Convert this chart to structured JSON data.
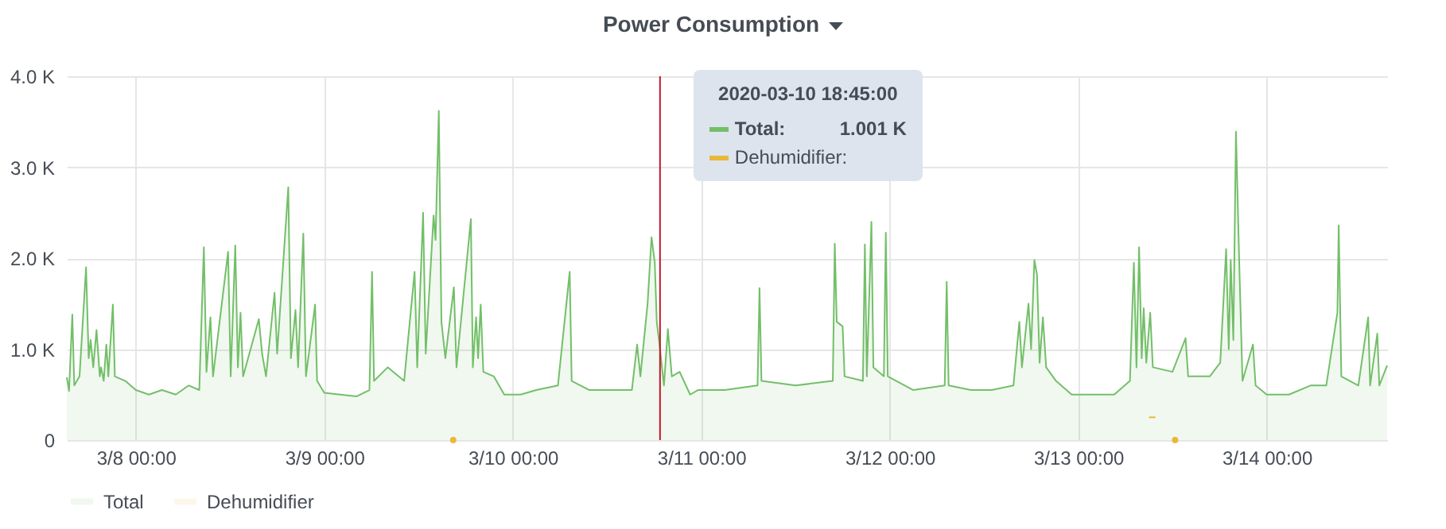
{
  "chart_data": {
    "type": "area",
    "title": "Power Consumption",
    "x": [
      "2020-03-07T15:13",
      "2020-03-07T15:30",
      "2020-03-07T15:55",
      "2020-03-07T16:10",
      "2020-03-07T16:50",
      "2020-03-07T17:40",
      "2020-03-07T18:00",
      "2020-03-07T18:15",
      "2020-03-07T18:35",
      "2020-03-07T19:00",
      "2020-03-07T19:25",
      "2020-03-07T19:35",
      "2020-03-07T19:55",
      "2020-03-07T20:15",
      "2020-03-07T20:30",
      "2020-03-07T21:05",
      "2020-03-07T21:20",
      "2020-03-07T22:40",
      "2020-03-08T00:00",
      "2020-03-08T01:40",
      "2020-03-08T03:20",
      "2020-03-08T05:05",
      "2020-03-08T06:45",
      "2020-03-08T08:05",
      "2020-03-08T08:40",
      "2020-03-08T09:00",
      "2020-03-08T09:30",
      "2020-03-08T09:50",
      "2020-03-08T11:45",
      "2020-03-08T12:05",
      "2020-03-08T12:40",
      "2020-03-08T13:00",
      "2020-03-08T13:20",
      "2020-03-08T13:40",
      "2020-03-08T15:40",
      "2020-03-08T16:05",
      "2020-03-08T16:35",
      "2020-03-08T17:40",
      "2020-03-08T18:00",
      "2020-03-08T19:25",
      "2020-03-08T19:45",
      "2020-03-08T20:20",
      "2020-03-08T20:40",
      "2020-03-08T21:20",
      "2020-03-08T21:40",
      "2020-03-08T22:50",
      "2020-03-08T23:05",
      "2020-03-09T00:00",
      "2020-03-09T02:00",
      "2020-03-09T04:05",
      "2020-03-09T05:45",
      "2020-03-09T06:05",
      "2020-03-09T06:20",
      "2020-03-09T08:05",
      "2020-03-09T10:10",
      "2020-03-09T11:30",
      "2020-03-09T11:50",
      "2020-03-09T12:35",
      "2020-03-09T12:55",
      "2020-03-09T13:55",
      "2020-03-09T14:10",
      "2020-03-09T14:35",
      "2020-03-09T14:55",
      "2020-03-09T15:25",
      "2020-03-09T16:30",
      "2020-03-09T16:50",
      "2020-03-09T18:40",
      "2020-03-09T18:55",
      "2020-03-09T19:20",
      "2020-03-09T19:35",
      "2020-03-09T19:55",
      "2020-03-09T20:15",
      "2020-03-09T21:35",
      "2020-03-09T22:55",
      "2020-03-10T01:00",
      "2020-03-10T03:00",
      "2020-03-10T05:45",
      "2020-03-10T07:15",
      "2020-03-10T07:30",
      "2020-03-10T09:45",
      "2020-03-10T12:25",
      "2020-03-10T15:10",
      "2020-03-10T15:50",
      "2020-03-10T16:15",
      "2020-03-10T17:10",
      "2020-03-10T17:40",
      "2020-03-10T18:05",
      "2020-03-10T18:20",
      "2020-03-10T18:45",
      "2020-03-10T19:15",
      "2020-03-10T19:45",
      "2020-03-10T20:15",
      "2020-03-10T21:15",
      "2020-03-10T22:35",
      "2020-03-10T23:35",
      "2020-03-11T03:00",
      "2020-03-11T07:10",
      "2020-03-11T07:25",
      "2020-03-11T07:40",
      "2020-03-11T12:00",
      "2020-03-11T16:45",
      "2020-03-11T17:00",
      "2020-03-11T17:15",
      "2020-03-11T18:00",
      "2020-03-11T18:15",
      "2020-03-11T20:35",
      "2020-03-11T20:50",
      "2020-03-11T21:05",
      "2020-03-11T21:40",
      "2020-03-11T21:55",
      "2020-03-11T23:15",
      "2020-03-11T23:30",
      "2020-03-11T23:45",
      "2020-03-12T03:00",
      "2020-03-12T07:00",
      "2020-03-12T07:15",
      "2020-03-12T07:30",
      "2020-03-12T10:20",
      "2020-03-12T13:00",
      "2020-03-12T15:45",
      "2020-03-12T16:30",
      "2020-03-12T16:50",
      "2020-03-12T17:40",
      "2020-03-12T18:00",
      "2020-03-12T18:25",
      "2020-03-12T18:45",
      "2020-03-12T19:05",
      "2020-03-12T19:30",
      "2020-03-12T19:55",
      "2020-03-12T21:10",
      "2020-03-12T23:10",
      "2020-03-13T01:50",
      "2020-03-13T04:35",
      "2020-03-13T06:35",
      "2020-03-13T07:05",
      "2020-03-13T07:25",
      "2020-03-13T07:45",
      "2020-03-13T08:05",
      "2020-03-13T08:20",
      "2020-03-13T08:40",
      "2020-03-13T09:10",
      "2020-03-13T09:30",
      "2020-03-13T12:00",
      "2020-03-13T13:40",
      "2020-03-13T14:00",
      "2020-03-13T16:45",
      "2020-03-13T18:05",
      "2020-03-13T18:50",
      "2020-03-13T19:10",
      "2020-03-13T19:25",
      "2020-03-13T19:45",
      "2020-03-13T20:05",
      "2020-03-13T20:30",
      "2020-03-13T20:55",
      "2020-03-13T22:15",
      "2020-03-13T22:35",
      "2020-03-14T00:00",
      "2020-03-14T02:50",
      "2020-03-14T05:35",
      "2020-03-14T07:35",
      "2020-03-14T09:00",
      "2020-03-14T09:10",
      "2020-03-14T09:30",
      "2020-03-14T11:40",
      "2020-03-14T12:55",
      "2020-03-14T13:10",
      "2020-03-14T14:05",
      "2020-03-14T14:20",
      "2020-03-14T15:20"
    ],
    "series": [
      {
        "name": "Total",
        "color": "#73bf69",
        "values": [
          690,
          540,
          1380,
          600,
          700,
          1900,
          900,
          1100,
          800,
          1210,
          700,
          800,
          650,
          1050,
          700,
          1490,
          700,
          650,
          550,
          500,
          550,
          500,
          600,
          550,
          2120,
          750,
          1350,
          700,
          2070,
          700,
          2140,
          800,
          1400,
          700,
          1330,
          950,
          700,
          1620,
          950,
          2780,
          900,
          1430,
          800,
          2270,
          700,
          1490,
          650,
          520,
          500,
          480,
          550,
          1850,
          650,
          800,
          650,
          1850,
          800,
          2500,
          950,
          2470,
          2200,
          3620,
          1300,
          900,
          1680,
          800,
          2430,
          800,
          1350,
          900,
          1490,
          750,
          700,
          500,
          500,
          550,
          600,
          1850,
          650,
          550,
          550,
          550,
          1050,
          700,
          1500,
          2230,
          1950,
          1300,
          1001,
          600,
          1220,
          700,
          750,
          500,
          550,
          550,
          600,
          1670,
          650,
          600,
          650,
          2160,
          1300,
          1250,
          700,
          650,
          2150,
          700,
          2400,
          800,
          700,
          2280,
          700,
          550,
          600,
          1740,
          600,
          550,
          550,
          600,
          1300,
          800,
          1500,
          1000,
          1980,
          1820,
          850,
          1350,
          800,
          650,
          500,
          500,
          500,
          650,
          1950,
          800,
          2120,
          900,
          1450,
          850,
          1400,
          800,
          750,
          1120,
          700,
          700,
          850,
          2100,
          1000,
          1980,
          1100,
          3390,
          1950,
          650,
          1050,
          600,
          500,
          500,
          600,
          600,
          1400,
          2360,
          700,
          600,
          1350,
          600,
          1170,
          600,
          820
        ]
      },
      {
        "name": "Dehumidifier",
        "type": "line",
        "color": "#eab839",
        "x": [
          "2020-03-09T16:25",
          "2020-03-11T00:00",
          "2020-03-13T09:00",
          "2020-03-13T09:50",
          "2020-03-13T11:00",
          "2020-03-13T12:20"
        ],
        "values": [
          0,
          null,
          250,
          250,
          null,
          0
        ]
      }
    ],
    "xlim": [
      "2020-03-07T15:13",
      "2020-03-14T15:20"
    ],
    "xticks": [
      {
        "value": "2020-03-08T00:00",
        "label": "3/8 00:00"
      },
      {
        "value": "2020-03-09T00:00",
        "label": "3/9 00:00"
      },
      {
        "value": "2020-03-10T00:00",
        "label": "3/10 00:00"
      },
      {
        "value": "2020-03-11T00:00",
        "label": "3/11 00:00"
      },
      {
        "value": "2020-03-12T00:00",
        "label": "3/12 00:00"
      },
      {
        "value": "2020-03-13T00:00",
        "label": "3/13 00:00"
      },
      {
        "value": "2020-03-14T00:00",
        "label": "3/14 00:00"
      }
    ],
    "ylim": [
      0,
      4000
    ],
    "yticks": [
      0,
      {
        "value": 1000,
        "label": "1.0 K"
      },
      {
        "value": 2000,
        "label": "2.0 K"
      },
      {
        "value": 3000,
        "label": "3.0 K"
      },
      {
        "value": 4000,
        "label": "4.0 K"
      }
    ],
    "ref_lines": [
      {
        "axis": "x",
        "value": "2020-03-10T18:45",
        "color": "#c4162a"
      }
    ],
    "annotations": [
      "2020-03-10 18:45:00",
      "Total:",
      "1.001 K",
      "Dehumidifier:"
    ],
    "grid": true,
    "legend": "bottom left"
  }
}
